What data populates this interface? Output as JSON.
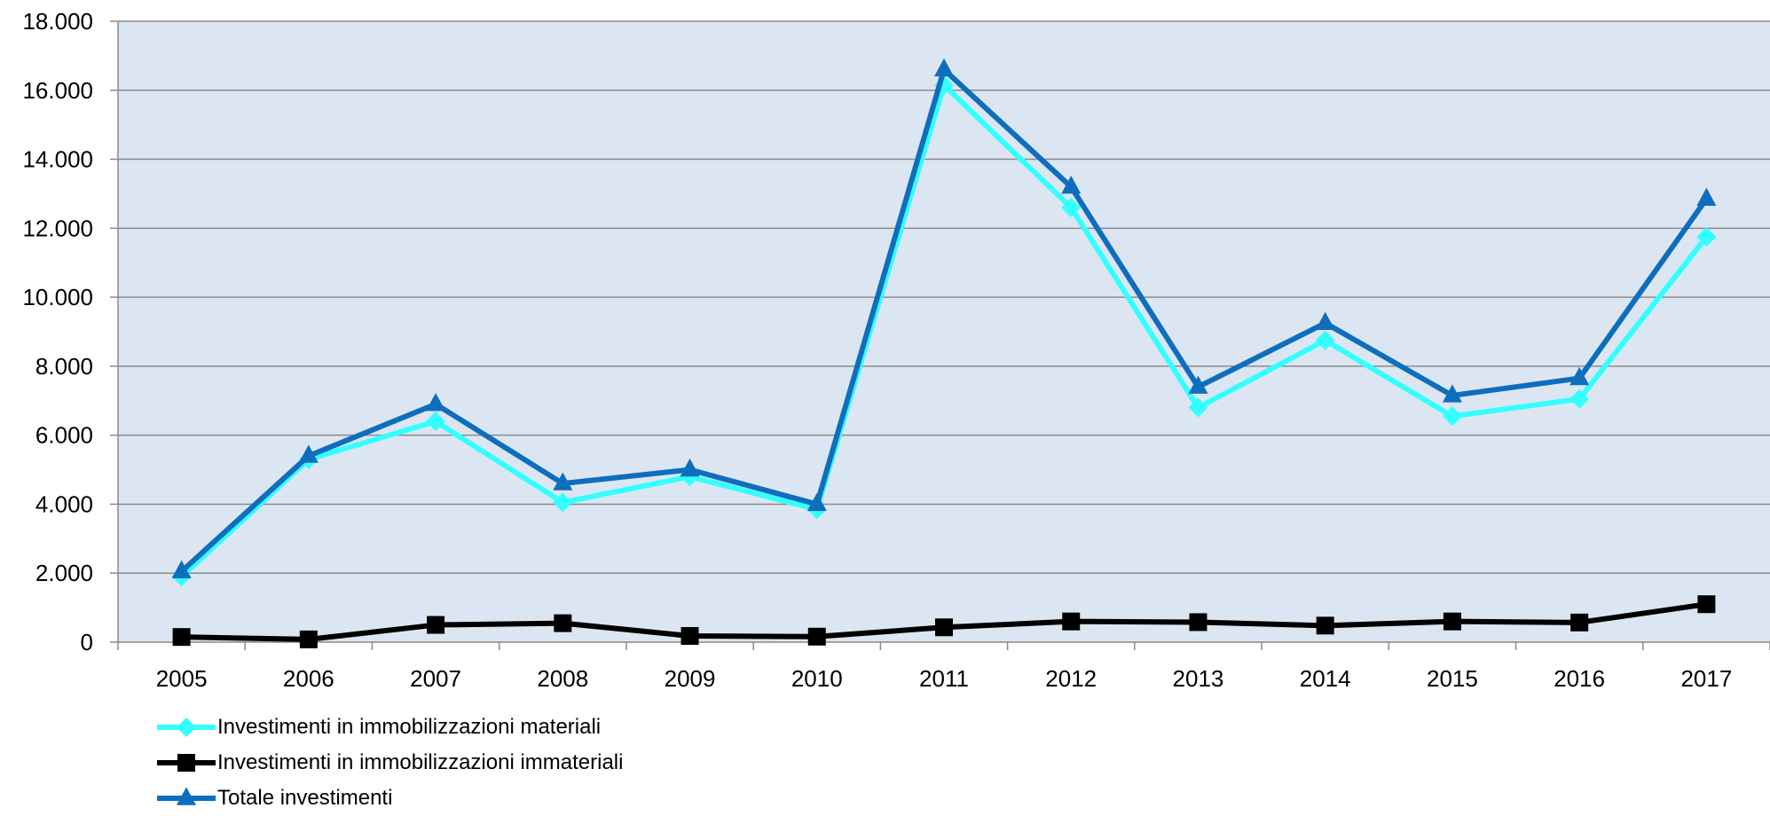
{
  "chart_data": {
    "type": "line",
    "title": "",
    "xlabel": "",
    "ylabel": "",
    "categories": [
      "2005",
      "2006",
      "2007",
      "2008",
      "2009",
      "2010",
      "2011",
      "2012",
      "2013",
      "2014",
      "2015",
      "2016",
      "2017"
    ],
    "y_ticks": [
      0,
      2000,
      4000,
      6000,
      8000,
      10000,
      12000,
      14000,
      16000,
      18000
    ],
    "y_tick_labels": [
      "0",
      "2.000",
      "4.000",
      "6.000",
      "8.000",
      "10.000",
      "12.000",
      "14.000",
      "16.000",
      "18.000"
    ],
    "ylim": [
      0,
      18000
    ],
    "grid": true,
    "plot_background": "#dce6f2",
    "legend_position": "bottom-left",
    "series": [
      {
        "name": "Investimenti in immobilizzazioni materiali",
        "color": "#33ffff",
        "marker": "diamond",
        "values": [
          1900,
          5300,
          6400,
          4050,
          4800,
          3850,
          16150,
          12600,
          6800,
          8750,
          6550,
          7050,
          11750
        ]
      },
      {
        "name": "Investimenti in immobilizzazioni immateriali",
        "color": "#000000",
        "marker": "square",
        "values": [
          150,
          80,
          500,
          550,
          180,
          160,
          430,
          600,
          580,
          480,
          600,
          570,
          1100
        ]
      },
      {
        "name": "Totale investimenti",
        "color": "#0e6ebe",
        "marker": "triangle",
        "values": [
          2050,
          5400,
          6900,
          4600,
          5000,
          4000,
          16600,
          13200,
          7400,
          9250,
          7150,
          7650,
          12850
        ]
      }
    ]
  }
}
